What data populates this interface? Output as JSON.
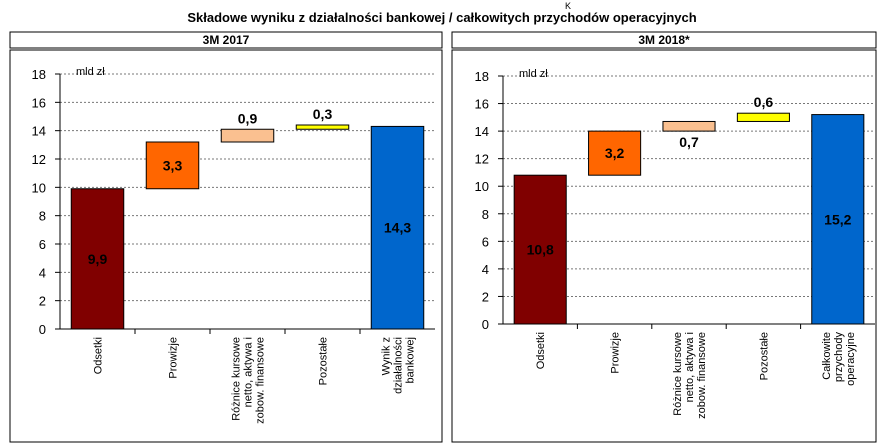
{
  "title": "Składowe wyniku z działalności bankowej / całkowitych przychodów operacyjnych",
  "annotation": "K",
  "chart_data": [
    {
      "type": "waterfall",
      "title": "3M 2017",
      "ylabel": "mld zł",
      "categories": [
        "Odsetki",
        "Prowizje",
        "Różnice kursowe\nnetto, aktywa i\nzobow. finansowe",
        "Pozostałe",
        "Wynik z\ndziałalności\nbankowej"
      ],
      "values": [
        9.9,
        3.3,
        0.9,
        0.3,
        14.3
      ],
      "value_labels": [
        "9,9",
        "3,3",
        "0,9",
        "0,3",
        "14,3"
      ],
      "is_total": [
        false,
        false,
        false,
        false,
        true
      ],
      "colors": [
        "#800000",
        "#ff6600",
        "#fac090",
        "#ffff00",
        "#0066cc"
      ],
      "label_colors": [
        "#ffffff",
        "#000000",
        "#000000",
        "#000000",
        "#ffffff"
      ],
      "label_positions": [
        "inside",
        "inside",
        "above",
        "above",
        "inside"
      ],
      "ylim": [
        0,
        18
      ],
      "yticks": [
        0,
        2,
        4,
        6,
        8,
        10,
        12,
        14,
        16,
        18
      ],
      "grid": true
    },
    {
      "type": "waterfall",
      "title": "3M 2018*",
      "ylabel": "mld zł",
      "categories": [
        "Odsetki",
        "Prowizje",
        "Różnice kursowe\nnetto, aktywa i\nzobow. finansowe",
        "Pozostałe",
        "Całkowite\nprzychody\noperacyjne"
      ],
      "values": [
        10.8,
        3.2,
        0.7,
        0.6,
        15.2
      ],
      "value_labels": [
        "10,8",
        "3,2",
        "0,7",
        "0,6",
        "15,2"
      ],
      "is_total": [
        false,
        false,
        false,
        false,
        true
      ],
      "colors": [
        "#800000",
        "#ff6600",
        "#fac090",
        "#ffff00",
        "#0066cc"
      ],
      "label_colors": [
        "#ffffff",
        "#000000",
        "#000000",
        "#000000",
        "#ffffff"
      ],
      "label_positions": [
        "inside",
        "inside",
        "below",
        "above",
        "inside"
      ],
      "ylim": [
        0,
        18
      ],
      "yticks": [
        0,
        2,
        4,
        6,
        8,
        10,
        12,
        14,
        16,
        18
      ],
      "grid": true
    }
  ]
}
